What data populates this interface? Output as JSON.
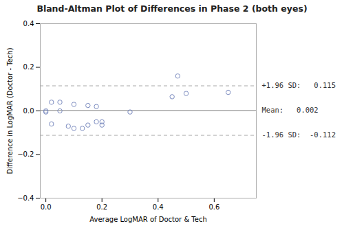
{
  "chart_data": {
    "type": "scatter",
    "title": "Bland-Altman Plot of Differences in Phase 2 (both eyes)",
    "xlabel": "Average LogMAR of Doctor & Tech",
    "ylabel": "Difference in LogMAR (Doctor - Tech)",
    "x": [
      0.0,
      0.0,
      0.02,
      0.02,
      0.05,
      0.05,
      0.08,
      0.1,
      0.1,
      0.13,
      0.15,
      0.15,
      0.18,
      0.18,
      0.2,
      0.2,
      0.3,
      0.45,
      0.47,
      0.5,
      0.65
    ],
    "values": [
      0.0,
      -0.005,
      -0.06,
      0.04,
      0.0,
      0.04,
      -0.07,
      -0.08,
      0.03,
      -0.08,
      0.025,
      -0.065,
      -0.05,
      0.02,
      -0.065,
      -0.05,
      -0.005,
      0.065,
      0.16,
      0.08,
      0.085
    ],
    "color": "#7b8bbf",
    "marker": "circle",
    "xlim": [
      -0.02,
      0.75
    ],
    "ylim": [
      -0.4,
      0.4
    ],
    "xticks": [
      {
        "value": 0,
        "label": "0.0"
      },
      0.2,
      0.4,
      0.6
    ],
    "yticks": [
      {
        "value": -0.4,
        "label": "−0.4"
      },
      {
        "value": -0.2,
        "label": "−0.2"
      },
      {
        "value": 0,
        "label": "0.0"
      },
      0.2,
      0.4
    ],
    "grid": false,
    "reference_lines": [
      {
        "value": 0.002,
        "label": "Mean:   0.002",
        "color": "#808080",
        "line_style": "solid"
      },
      {
        "value": 0.115,
        "label": "+1.96 SD:   0.115",
        "color": "#aaaaaa",
        "line_style": "dashed"
      },
      {
        "value": -0.112,
        "label": "-1.96 SD:  -0.112",
        "color": "#aaaaaa",
        "line_style": "dashed"
      }
    ]
  }
}
